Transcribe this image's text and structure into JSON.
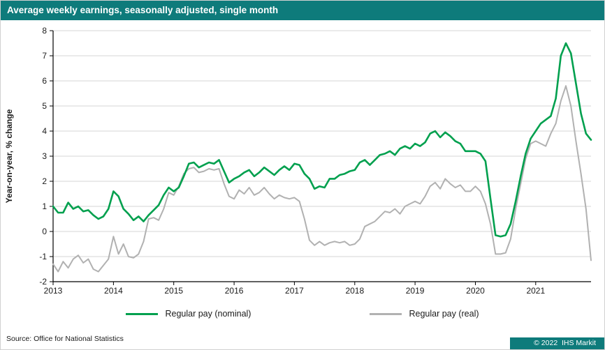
{
  "title_bar": {
    "title": "Average weekly earnings, seasonally adjusted, single month"
  },
  "colors": {
    "brand_teal": "#0E7B7B",
    "nominal_green": "#00A04E",
    "real_gray": "#B1B1B1",
    "gridline": "#D6D6D6",
    "axis": "#000000"
  },
  "chart_data": {
    "type": "line",
    "title": "Average weekly earnings, seasonally adjusted, single month",
    "xlabel": "",
    "ylabel": "Year-on-year, % change",
    "ylim": [
      -2,
      8
    ],
    "yticks": [
      -2,
      -1,
      0,
      1,
      2,
      3,
      4,
      5,
      6,
      7,
      8
    ],
    "x_tick_labels": [
      "2013",
      "2014",
      "2015",
      "2016",
      "2017",
      "2018",
      "2019",
      "2020",
      "2021"
    ],
    "x_frequency": "monthly",
    "x_start": "2013-01",
    "grid": "horizontal",
    "legend_position": "bottom",
    "series": [
      {
        "name": "Regular pay (nominal)",
        "color": "#00A04E",
        "values": [
          1.0,
          0.75,
          0.75,
          1.15,
          0.9,
          1.0,
          0.8,
          0.85,
          0.65,
          0.5,
          0.6,
          0.9,
          1.6,
          1.4,
          0.9,
          0.7,
          0.45,
          0.6,
          0.4,
          0.65,
          0.85,
          1.05,
          1.45,
          1.75,
          1.6,
          1.75,
          2.2,
          2.7,
          2.75,
          2.55,
          2.65,
          2.75,
          2.7,
          2.85,
          2.4,
          1.95,
          2.1,
          2.2,
          2.35,
          2.45,
          2.2,
          2.35,
          2.55,
          2.4,
          2.25,
          2.45,
          2.6,
          2.45,
          2.7,
          2.65,
          2.3,
          2.1,
          1.7,
          1.8,
          1.75,
          2.1,
          2.1,
          2.25,
          2.3,
          2.4,
          2.45,
          2.75,
          2.85,
          2.65,
          2.85,
          3.05,
          3.1,
          3.2,
          3.05,
          3.3,
          3.4,
          3.3,
          3.5,
          3.4,
          3.55,
          3.9,
          4.0,
          3.75,
          3.95,
          3.8,
          3.6,
          3.5,
          3.2,
          3.2,
          3.2,
          3.1,
          2.8,
          1.3,
          -0.15,
          -0.2,
          -0.15,
          0.3,
          1.2,
          2.2,
          3.1,
          3.7,
          4.0,
          4.3,
          4.45,
          4.6,
          5.3,
          7.0,
          7.5,
          7.1,
          5.9,
          4.7,
          3.9,
          3.65
        ]
      },
      {
        "name": "Regular pay (real)",
        "color": "#B1B1B1",
        "values": [
          -1.3,
          -1.6,
          -1.2,
          -1.45,
          -1.1,
          -0.95,
          -1.25,
          -1.1,
          -1.5,
          -1.6,
          -1.35,
          -1.1,
          -0.2,
          -0.9,
          -0.5,
          -1.0,
          -1.05,
          -0.9,
          -0.4,
          0.5,
          0.55,
          0.45,
          0.9,
          1.55,
          1.45,
          1.8,
          2.3,
          2.5,
          2.55,
          2.35,
          2.4,
          2.5,
          2.45,
          2.5,
          1.9,
          1.4,
          1.3,
          1.65,
          1.5,
          1.75,
          1.45,
          1.55,
          1.75,
          1.5,
          1.3,
          1.45,
          1.35,
          1.3,
          1.35,
          1.2,
          0.5,
          -0.35,
          -0.55,
          -0.4,
          -0.55,
          -0.45,
          -0.4,
          -0.45,
          -0.4,
          -0.55,
          -0.5,
          -0.3,
          0.2,
          0.3,
          0.4,
          0.6,
          0.8,
          0.75,
          0.9,
          0.7,
          1.0,
          1.1,
          1.2,
          1.1,
          1.4,
          1.8,
          1.95,
          1.7,
          2.1,
          1.9,
          1.75,
          1.85,
          1.6,
          1.6,
          1.8,
          1.6,
          1.1,
          0.3,
          -0.9,
          -0.9,
          -0.85,
          -0.3,
          0.9,
          1.9,
          2.9,
          3.5,
          3.6,
          3.5,
          3.4,
          3.9,
          4.3,
          5.2,
          5.8,
          5.0,
          3.6,
          2.3,
          0.9,
          -1.15
        ]
      }
    ]
  },
  "footer": {
    "source": "Source:  Office for National Statistics",
    "copyright": "© 2022  IHS Markit"
  }
}
